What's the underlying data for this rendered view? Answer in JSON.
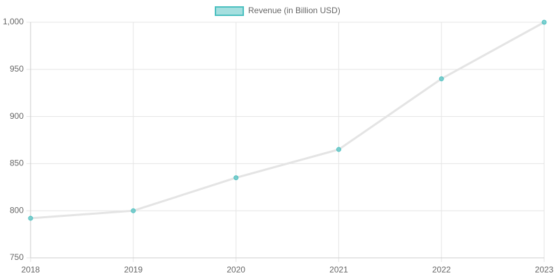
{
  "chart_data": {
    "type": "line",
    "categories": [
      "2018",
      "2019",
      "2020",
      "2021",
      "2022",
      "2023"
    ],
    "series": [
      {
        "name": "Revenue (in Billion USD)",
        "color": "#4bc0c0",
        "line_color": "#e4e4e4",
        "values": [
          792,
          800,
          835,
          865,
          940,
          1000
        ]
      }
    ],
    "ylim": [
      750,
      1000
    ],
    "yticks": [
      750,
      800,
      850,
      900,
      950,
      {
        "value": 1000,
        "label": "1,000"
      }
    ],
    "grid": true,
    "legend": "top"
  }
}
